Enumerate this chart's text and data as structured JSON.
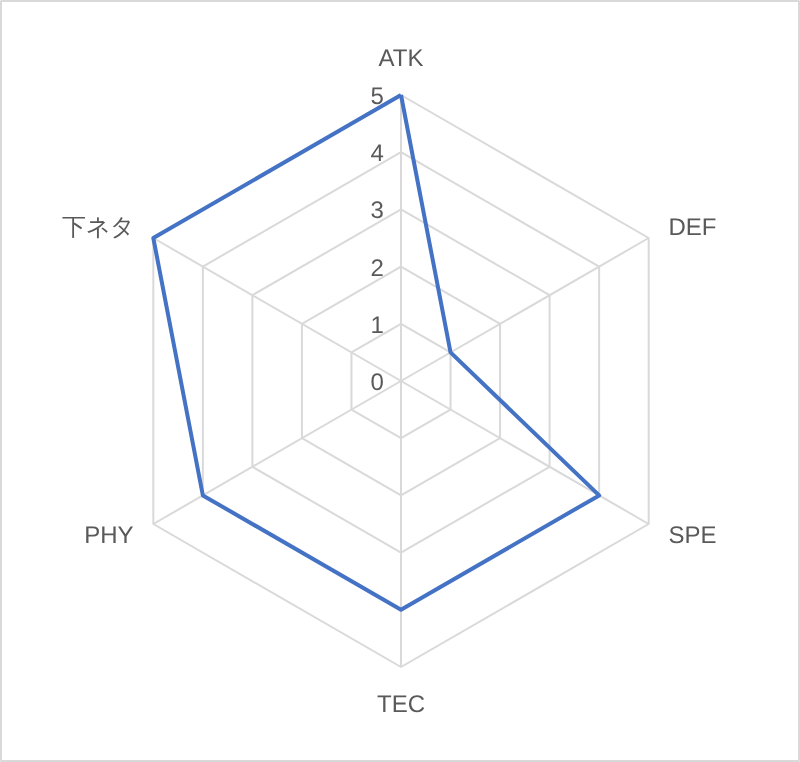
{
  "chart_data": {
    "type": "radar",
    "categories": [
      "ATK",
      "DEF",
      "SPE",
      "TEC",
      "PHY",
      "下ネタ"
    ],
    "series": [
      {
        "color": "#4472c4",
        "values": [
          5,
          1,
          4,
          4,
          4,
          5
        ]
      }
    ],
    "ylim": [
      0,
      5
    ],
    "yticks": [
      0,
      1,
      2,
      3,
      4,
      5
    ],
    "grid": true,
    "marker": "none",
    "line_style": "solid"
  }
}
